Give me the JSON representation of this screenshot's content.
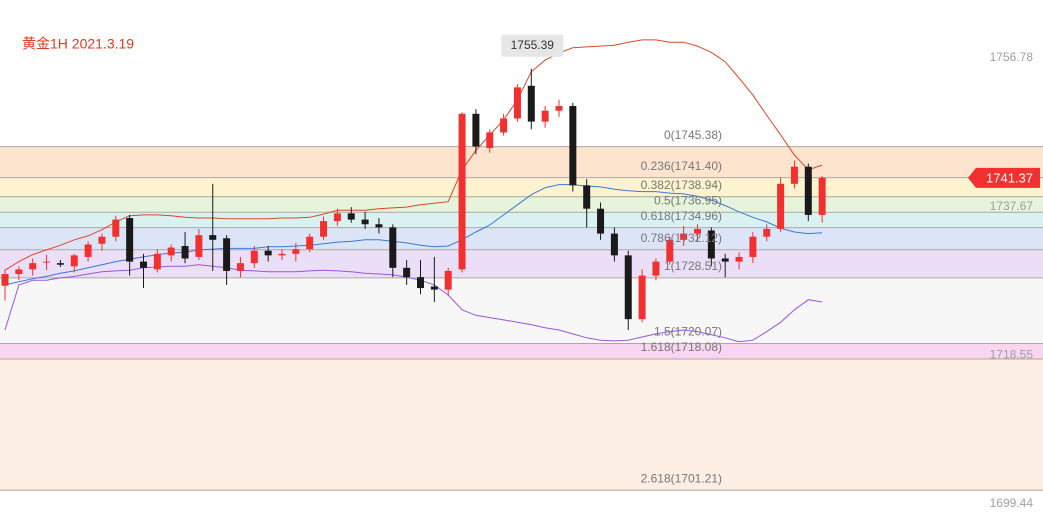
{
  "chart_data": {
    "type": "candlestick",
    "title": "黄金1H 2021.3.19",
    "ylim": [
      1697.38,
      1764.23
    ],
    "yticks": [
      1756.78,
      1737.67,
      1718.55,
      1699.44
    ],
    "up_color": "#f23030",
    "down_color": "#1a1a1a",
    "open": [
      1727.5,
      1729.0,
      1729.6,
      1730.5,
      1730.4,
      1730.0,
      1731.2,
      1732.9,
      1733.8,
      1736.2,
      1730.6,
      1729.6,
      1731.4,
      1732.6,
      1731.2,
      1734.0,
      1733.6,
      1729.4,
      1730.4,
      1732.0,
      1731.4,
      1731.6,
      1732.2,
      1733.8,
      1735.8,
      1736.8,
      1736.0,
      1735.4,
      1735.0,
      1729.8,
      1728.6,
      1727.4,
      1727.0,
      1729.6,
      1749.6,
      1745.2,
      1747.2,
      1749.0,
      1753.2,
      1748.6,
      1750.0,
      1750.6,
      1740.4,
      1737.4,
      1734.2,
      1731.4,
      1723.2,
      1728.8,
      1730.6,
      1733.4,
      1734.2,
      1734.6,
      1731.0,
      1730.6,
      1731.2,
      1733.8,
      1734.8,
      1740.6,
      1742.8,
      1736.6
    ],
    "high": [
      1729.6,
      1730.0,
      1731.0,
      1731.5,
      1730.8,
      1731.6,
      1733.2,
      1734.2,
      1736.5,
      1736.6,
      1731.6,
      1732.2,
      1732.8,
      1734.4,
      1734.8,
      1740.6,
      1734.0,
      1731.2,
      1732.6,
      1732.6,
      1732.2,
      1733.0,
      1734.2,
      1736.4,
      1737.4,
      1737.6,
      1737.0,
      1736.2,
      1735.4,
      1730.8,
      1730.8,
      1731.2,
      1729.8,
      1749.8,
      1750.2,
      1747.6,
      1749.6,
      1753.4,
      1755.39,
      1750.6,
      1751.4,
      1751.0,
      1741.2,
      1738.2,
      1735.0,
      1732.0,
      1729.6,
      1731.0,
      1733.8,
      1735.2,
      1735.4,
      1735.0,
      1731.6,
      1731.8,
      1734.4,
      1735.4,
      1741.4,
      1743.6,
      1743.2,
      1741.6
    ],
    "low": [
      1725.6,
      1728.2,
      1728.8,
      1729.5,
      1729.9,
      1729.2,
      1730.6,
      1732.0,
      1733.2,
      1728.8,
      1727.2,
      1729.2,
      1730.6,
      1730.4,
      1730.8,
      1729.4,
      1727.6,
      1728.6,
      1729.8,
      1730.6,
      1730.8,
      1730.6,
      1731.8,
      1733.4,
      1735.2,
      1735.6,
      1734.8,
      1734.2,
      1728.6,
      1727.6,
      1726.4,
      1725.4,
      1726.2,
      1729.2,
      1744.4,
      1744.6,
      1746.8,
      1748.6,
      1747.6,
      1747.8,
      1749.2,
      1739.6,
      1735.0,
      1733.4,
      1730.6,
      1721.8,
      1722.8,
      1728.2,
      1730.2,
      1732.6,
      1733.2,
      1730.0,
      1728.6,
      1729.6,
      1730.4,
      1733.2,
      1734.4,
      1740.0,
      1735.8,
      1735.6
    ],
    "close": [
      1729.0,
      1729.6,
      1730.4,
      1730.6,
      1730.2,
      1731.4,
      1732.8,
      1733.8,
      1736.0,
      1730.6,
      1729.8,
      1731.6,
      1732.4,
      1731.0,
      1734.0,
      1733.4,
      1729.4,
      1730.4,
      1732.0,
      1731.4,
      1731.6,
      1732.2,
      1733.8,
      1735.8,
      1736.8,
      1736.0,
      1735.4,
      1735.0,
      1729.8,
      1728.6,
      1727.2,
      1727.0,
      1729.4,
      1749.6,
      1745.4,
      1747.2,
      1749.0,
      1753.0,
      1748.6,
      1750.0,
      1750.6,
      1740.4,
      1737.4,
      1734.2,
      1731.4,
      1723.2,
      1728.8,
      1730.6,
      1733.4,
      1734.2,
      1734.8,
      1731.0,
      1730.6,
      1731.2,
      1733.8,
      1734.8,
      1740.6,
      1742.8,
      1736.6,
      1741.37
    ],
    "overlays": [
      {
        "color": "#e0452c",
        "values": [
          1729.5,
          1730.6,
          1731.5,
          1732.1,
          1732.7,
          1733.4,
          1733.9,
          1734.7,
          1735.7,
          1736.5,
          1736.6,
          1736.6,
          1736.5,
          1736.3,
          1736.2,
          1736.2,
          1736.1,
          1736.1,
          1736.1,
          1736.1,
          1736.2,
          1736.2,
          1736.3,
          1736.7,
          1737.2,
          1737.2,
          1737.2,
          1737.4,
          1737.5,
          1737.6,
          1737.9,
          1738.1,
          1738.3,
          1742.4,
          1744.9,
          1746.9,
          1748.8,
          1751.4,
          1755.0,
          1756.5,
          1757.4,
          1758.1,
          1758.2,
          1758.3,
          1758.4,
          1758.8,
          1759.1,
          1759.1,
          1758.8,
          1758.8,
          1758.3,
          1757.5,
          1756.3,
          1754.2,
          1752.0,
          1749.4,
          1746.9,
          1744.3,
          1742.4,
          1743.0
        ]
      },
      {
        "color": "#3a78d8",
        "values": [
          1727.6,
          1728.0,
          1728.4,
          1728.7,
          1729.1,
          1729.4,
          1729.8,
          1730.2,
          1730.6,
          1730.9,
          1731.2,
          1731.5,
          1731.7,
          1731.8,
          1732.1,
          1732.2,
          1732.3,
          1732.3,
          1732.3,
          1732.5,
          1732.5,
          1732.6,
          1732.7,
          1732.9,
          1733.1,
          1733.2,
          1733.4,
          1733.4,
          1733.2,
          1733.0,
          1732.7,
          1732.5,
          1732.6,
          1733.4,
          1734.4,
          1735.3,
          1736.6,
          1737.9,
          1739.2,
          1740.1,
          1740.5,
          1740.5,
          1740.3,
          1740.2,
          1739.9,
          1739.7,
          1739.6,
          1739.6,
          1739.4,
          1739.3,
          1739.0,
          1738.5,
          1737.8,
          1737.0,
          1736.3,
          1735.7,
          1734.9,
          1734.4,
          1734.2,
          1734.3
        ]
      },
      {
        "color": "#9a55e0",
        "values": [
          1721.8,
          1727.6,
          1728.2,
          1728.2,
          1728.5,
          1728.7,
          1729.0,
          1729.3,
          1729.4,
          1729.5,
          1729.8,
          1729.9,
          1730.0,
          1730.0,
          1730.2,
          1730.0,
          1729.8,
          1729.5,
          1729.4,
          1729.3,
          1729.3,
          1729.3,
          1729.4,
          1729.5,
          1729.4,
          1729.3,
          1729.1,
          1729.0,
          1728.9,
          1728.6,
          1728.2,
          1727.6,
          1726.3,
          1724.4,
          1723.7,
          1723.4,
          1723.1,
          1722.8,
          1722.5,
          1722.1,
          1721.8,
          1721.3,
          1720.8,
          1720.5,
          1720.4,
          1720.5,
          1720.9,
          1721.3,
          1721.6,
          1721.8,
          1721.6,
          1721.2,
          1720.8,
          1720.3,
          1720.5,
          1721.6,
          1722.8,
          1724.4,
          1725.7,
          1725.4
        ]
      }
    ],
    "fib_levels": [
      {
        "value": 1745.38,
        "label": "0(1745.38)",
        "color": "#fde4cf"
      },
      {
        "value": 1741.4,
        "label": "0.236(1741.40)",
        "color": "#fdf3cf"
      },
      {
        "value": 1738.94,
        "label": "0.382(1738.94)",
        "color": "#e5f4da"
      },
      {
        "value": 1736.95,
        "label": "0.5(1736.95)",
        "color": "#daf1f1"
      },
      {
        "value": 1734.96,
        "label": "0.618(1734.96)",
        "color": "#dce5f8"
      },
      {
        "value": 1732.12,
        "label": "0.786(1732.12)",
        "color": "#ebdff8"
      },
      {
        "value": 1728.51,
        "label": "1(1728.51)",
        "color": "#f7f7f7"
      },
      {
        "value": 1720.07,
        "label": "1.5(1720.07)",
        "color": "#f8d6f1"
      },
      {
        "value": 1718.08,
        "label": "1.618(1718.08)",
        "color": "#fdeee4"
      },
      {
        "value": 1701.21,
        "label": "2.618(1701.21)",
        "color": "#ffffff"
      }
    ],
    "max_annotation": 1755.39,
    "last_price": 1741.37
  }
}
